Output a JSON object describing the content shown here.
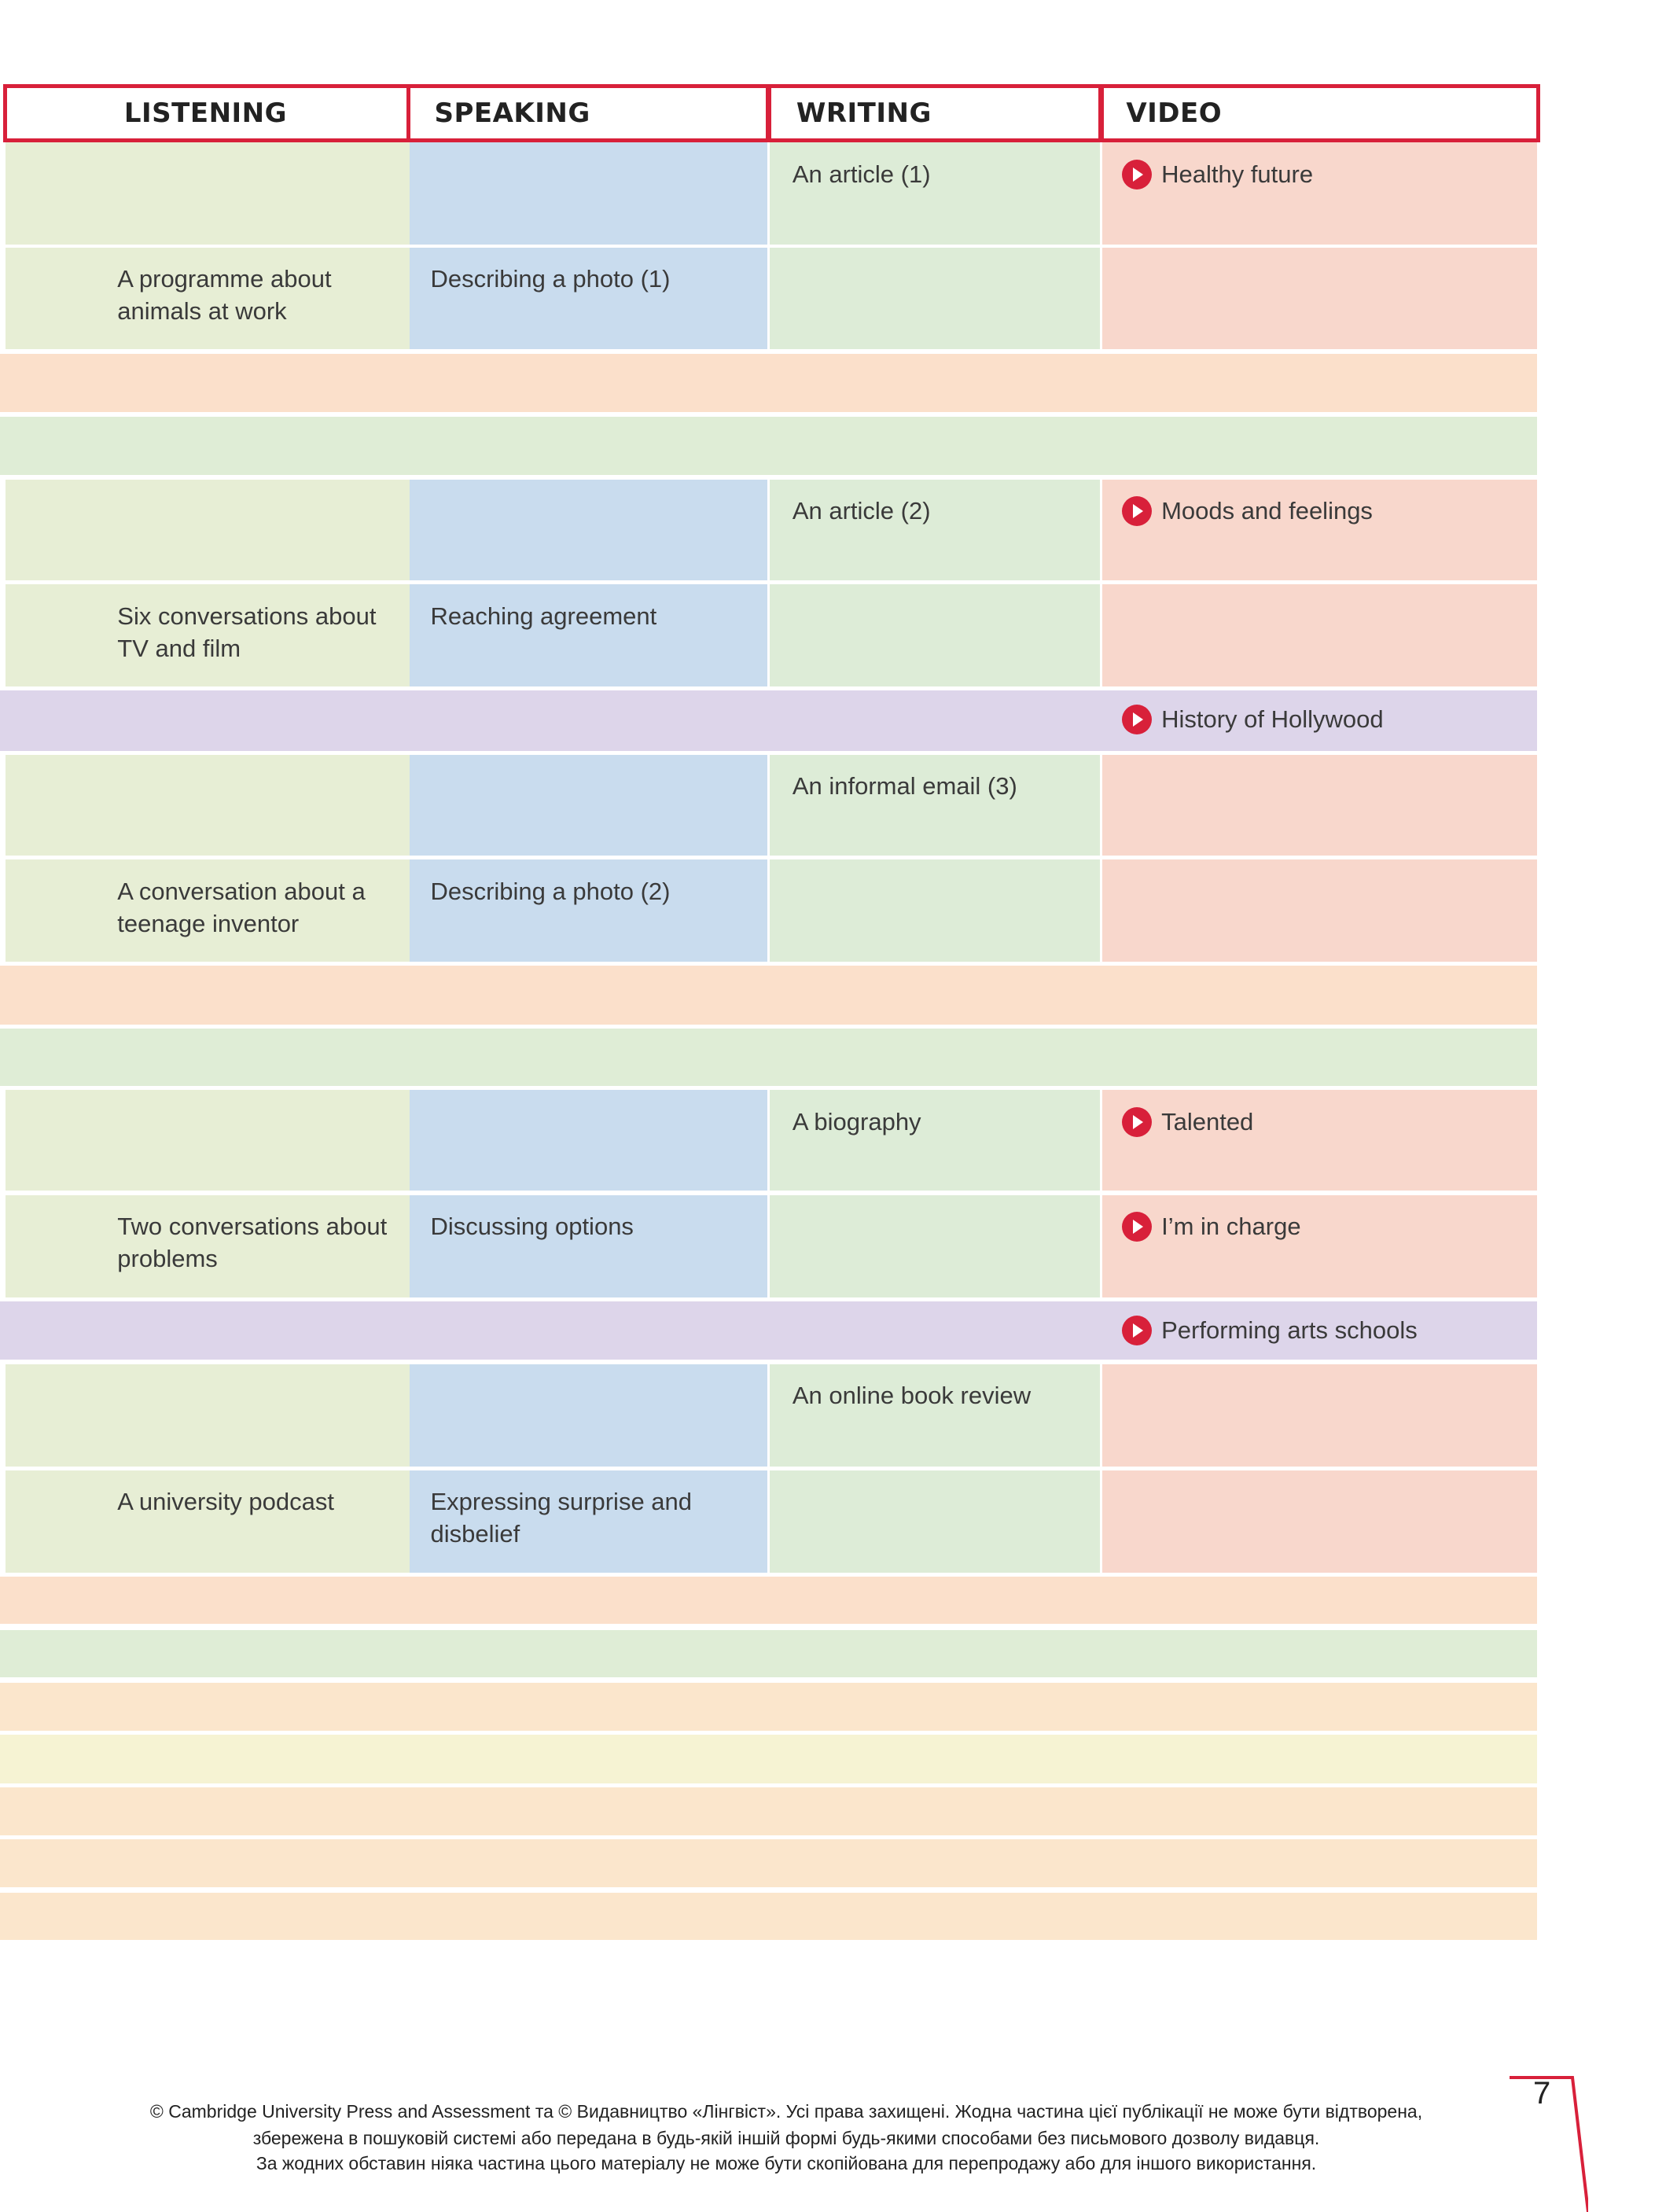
{
  "table": {
    "columns": [
      "LISTENING",
      "SPEAKING",
      "WRITING",
      "VIDEO"
    ],
    "rows": [
      {
        "writing": "An article (1)",
        "video": "Healthy future"
      },
      {
        "listening": "A programme about animals at work",
        "speaking": "Describing a photo (1)"
      },
      {
        "writing": "An article (2)",
        "video": "Moods and feelings"
      },
      {
        "listening": "Six conversations about TV and film",
        "speaking": "Reaching agreement"
      },
      {
        "video": "History of Hollywood"
      },
      {
        "writing": "An informal email (3)"
      },
      {
        "listening": "A conversation about a teenage inventor",
        "speaking": "Describing a photo (2)"
      },
      {
        "writing": "A biography",
        "video": "Talented"
      },
      {
        "listening": "Two conversations about problems",
        "speaking": "Discussing options",
        "video": "I’m in charge"
      },
      {
        "video": "Performing arts schools"
      },
      {
        "writing": "An online book review"
      },
      {
        "listening": "A university podcast",
        "speaking": "Expressing surprise and disbelief"
      }
    ]
  },
  "footer": {
    "lines": [
      "© Cambridge University Press and Assessment та © Видавництво «Лінгвіст». Усі права захищені. Жодна частина цієї публікації не може бути відтворена,",
      "збережена в пошуковій системі або передана в будь-якій іншій формі будь-якими способами без письмового дозволу видавця.",
      "За жодних обставин ніяка частина цього матеріалу не може бути скопійована для перепродажу або для іншого використання."
    ],
    "page_number": "7"
  }
}
